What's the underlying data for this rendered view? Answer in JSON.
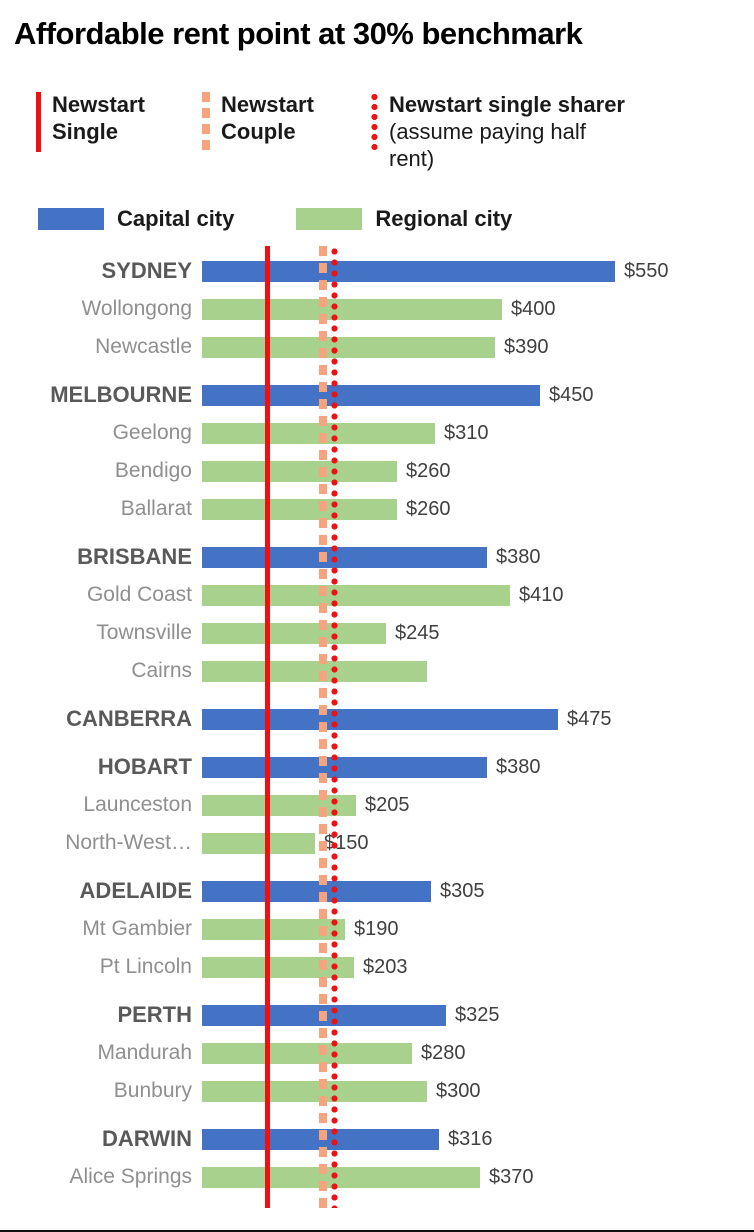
{
  "title": "Affordable rent point at 30% benchmark",
  "legend": {
    "benchmarks": [
      {
        "label_bold": "Newstart Single",
        "label_rest": "",
        "style": "solid",
        "color": "#ee1111"
      },
      {
        "label_bold": "Newstart Couple",
        "label_rest": "",
        "style": "dashed",
        "color": "#f6a47e"
      },
      {
        "label_bold": "Newstart single sharer",
        "label_rest": " (assume paying half rent)",
        "style": "dotted",
        "color": "#ee1111"
      }
    ],
    "series": [
      {
        "label": "Capital city",
        "color": "#4472c4"
      },
      {
        "label": "Regional city",
        "color": "#a9d18e"
      }
    ]
  },
  "chart_data": {
    "type": "bar",
    "orientation": "horizontal",
    "title": "Affordable rent point at 30% benchmark",
    "value_prefix": "$",
    "xlim": [
      0,
      736
    ],
    "rows": [
      {
        "label": "SYDNEY",
        "group": "capital",
        "value": 550,
        "value_label": "$550"
      },
      {
        "label": "Wollongong",
        "group": "regional",
        "value": 400,
        "value_label": "$400"
      },
      {
        "label": "Newcastle",
        "group": "regional",
        "value": 390,
        "value_label": "$390"
      },
      {
        "label": "MELBOURNE",
        "group": "capital",
        "value": 450,
        "value_label": "$450"
      },
      {
        "label": "Geelong",
        "group": "regional",
        "value": 310,
        "value_label": "$310"
      },
      {
        "label": "Bendigo",
        "group": "regional",
        "value": 260,
        "value_label": "$260"
      },
      {
        "label": "Ballarat",
        "group": "regional",
        "value": 260,
        "value_label": "$260"
      },
      {
        "label": "BRISBANE",
        "group": "capital",
        "value": 380,
        "value_label": "$380"
      },
      {
        "label": "Gold Coast",
        "group": "regional",
        "value": 410,
        "value_label": "$410"
      },
      {
        "label": "Townsville",
        "group": "regional",
        "value": 245,
        "value_label": "$245"
      },
      {
        "label": "Cairns",
        "group": "regional",
        "value": 300,
        "value_label": ""
      },
      {
        "label": "CANBERRA",
        "group": "capital",
        "value": 475,
        "value_label": "$475"
      },
      {
        "label": "HOBART",
        "group": "capital",
        "value": 380,
        "value_label": "$380"
      },
      {
        "label": "Launceston",
        "group": "regional",
        "value": 205,
        "value_label": "$205"
      },
      {
        "label": "North-West…",
        "group": "regional",
        "value": 150,
        "value_label": "$150"
      },
      {
        "label": "ADELAIDE",
        "group": "capital",
        "value": 305,
        "value_label": "$305"
      },
      {
        "label": "Mt Gambier",
        "group": "regional",
        "value": 190,
        "value_label": "$190"
      },
      {
        "label": "Pt Lincoln",
        "group": "regional",
        "value": 203,
        "value_label": "$203"
      },
      {
        "label": "PERTH",
        "group": "capital",
        "value": 325,
        "value_label": "$325"
      },
      {
        "label": "Mandurah",
        "group": "regional",
        "value": 280,
        "value_label": "$280"
      },
      {
        "label": "Bunbury",
        "group": "regional",
        "value": 300,
        "value_label": "$300"
      },
      {
        "label": "DARWIN",
        "group": "capital",
        "value": 316,
        "value_label": "$316"
      },
      {
        "label": "Alice Springs",
        "group": "regional",
        "value": 370,
        "value_label": "$370"
      }
    ],
    "benchmark_lines": [
      {
        "name": "Newstart Single",
        "style": "solid",
        "value": 88
      },
      {
        "name": "Newstart Couple",
        "style": "dashed",
        "value": 160
      },
      {
        "name": "Newstart single sharer (assume paying half rent)",
        "style": "dotted",
        "value": 176
      }
    ]
  }
}
